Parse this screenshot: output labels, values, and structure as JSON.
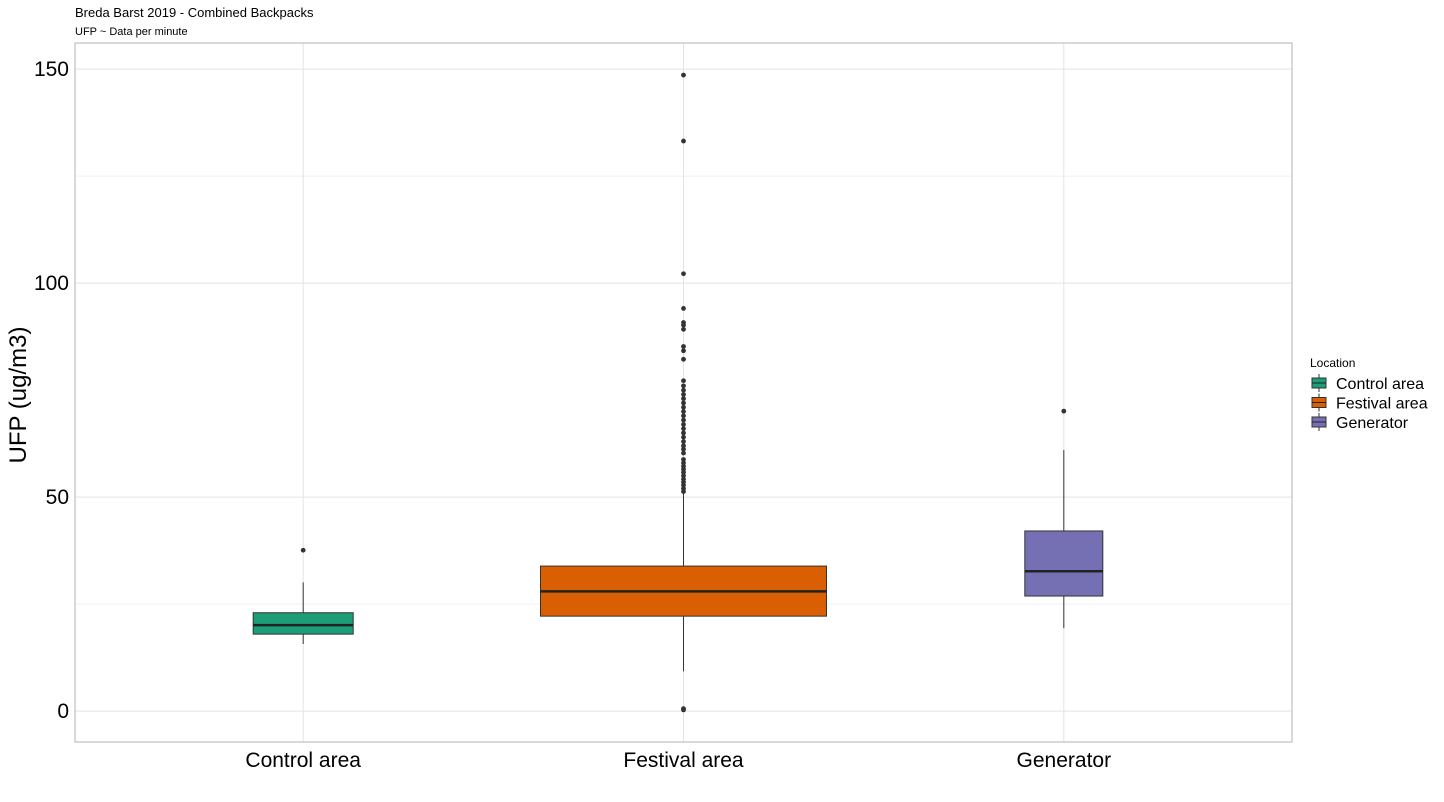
{
  "chart_data": {
    "type": "boxplot",
    "title": "Breda Barst 2019 - Combined Backpacks",
    "subtitle": "UFP ~ Data per minute",
    "xlabel": "",
    "ylabel": "UFP (ug/m3)",
    "ylim": [
      -7.2,
      156.1
    ],
    "yticks": [
      0,
      50,
      100,
      150
    ],
    "ytick_labels": [
      "0",
      "50",
      "100",
      "150"
    ],
    "y_minor_gridlines": [
      25,
      125
    ],
    "grid": true,
    "categories": [
      "Control area",
      "Festival area",
      "Generator"
    ],
    "legend": {
      "title": "Location",
      "placement": "right",
      "entries": [
        "Control area",
        "Festival area",
        "Generator"
      ]
    },
    "series": [
      {
        "name": "Control area",
        "color": "#1b9e77",
        "whisker_low": 15.7,
        "q1": 18.0,
        "median": 20.1,
        "q3": 23.0,
        "whisker_high": 30.1,
        "outliers": [
          37.6
        ]
      },
      {
        "name": "Festival area",
        "color": "#d95f02",
        "whisker_low": 9.3,
        "q1": 22.2,
        "median": 28.0,
        "q3": 33.9,
        "whisker_high": 50.9,
        "outliers": [
          0.3,
          0.6,
          51.3,
          52.0,
          52.8,
          53.5,
          54.2,
          55.0,
          55.8,
          56.5,
          57.2,
          58.0,
          58.8,
          60.3,
          61.2,
          62.0,
          63.0,
          64.0,
          65.0,
          66.0,
          67.0,
          68.0,
          69.0,
          70.0,
          71.0,
          72.0,
          73.0,
          74.0,
          75.0,
          76.0,
          77.2,
          82.2,
          84.2,
          85.2,
          89.2,
          90.2,
          90.8,
          94.1,
          102.2,
          133.2,
          148.6
        ]
      },
      {
        "name": "Generator",
        "color": "#7570b3",
        "whisker_low": 19.4,
        "q1": 26.9,
        "median": 32.7,
        "q3": 42.1,
        "whisker_high": 61.0,
        "outliers": [
          70.1
        ]
      }
    ]
  }
}
